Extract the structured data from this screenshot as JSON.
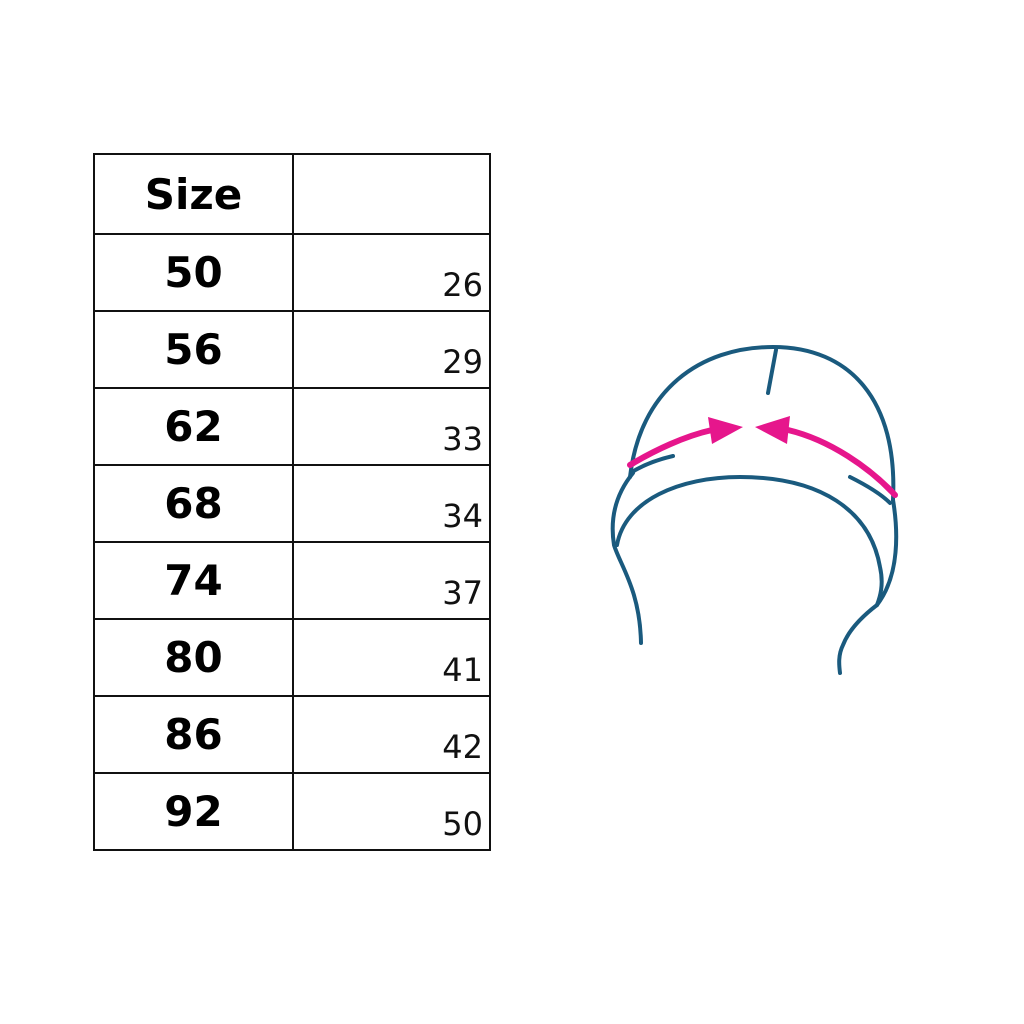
{
  "table": {
    "header": [
      "Size",
      ""
    ],
    "rows": [
      {
        "size": "50",
        "value": "26"
      },
      {
        "size": "56",
        "value": "29"
      },
      {
        "size": "62",
        "value": "33"
      },
      {
        "size": "68",
        "value": "34"
      },
      {
        "size": "74",
        "value": "37"
      },
      {
        "size": "80",
        "value": "41"
      },
      {
        "size": "86",
        "value": "42"
      },
      {
        "size": "92",
        "value": "50"
      }
    ]
  },
  "illustration": {
    "subject": "hat-icon",
    "outline_color": "#1a5a7e",
    "arrow_color": "#e6168c"
  }
}
